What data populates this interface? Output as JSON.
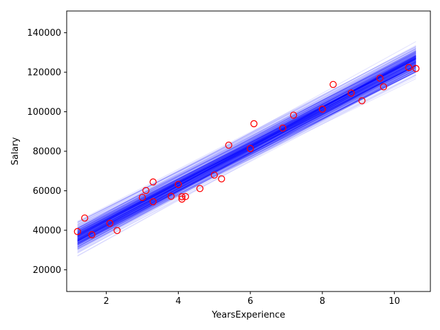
{
  "chart_data": {
    "type": "scatter",
    "title": "",
    "xlabel": "YearsExperience",
    "ylabel": "Salary",
    "xlim": [
      0.9,
      11.0
    ],
    "ylim": [
      9000,
      151000
    ],
    "x_ticks": [
      2,
      4,
      6,
      8,
      10
    ],
    "y_ticks": [
      20000,
      40000,
      60000,
      80000,
      100000,
      120000,
      140000
    ],
    "grid": false,
    "legend": "none",
    "colors": {
      "points": "#ff0000",
      "regression_lines": "#0000ff"
    },
    "points": {
      "x": [
        1.2,
        1.4,
        1.6,
        2.1,
        2.3,
        3.0,
        3.1,
        3.3,
        3.3,
        3.8,
        4.0,
        4.1,
        4.1,
        4.2,
        4.6,
        5.0,
        5.2,
        5.4,
        6.0,
        6.1,
        6.9,
        7.2,
        8.0,
        8.3,
        8.8,
        9.1,
        9.6,
        9.7,
        10.4,
        10.6
      ],
      "y": [
        39344,
        46206,
        37732,
        43526,
        39892,
        56643,
        60151,
        54446,
        64446,
        57190,
        63219,
        55795,
        56958,
        57082,
        61112,
        67939,
        66030,
        83089,
        81364,
        93941,
        91739,
        98274,
        101303,
        113813,
        109432,
        105583,
        116970,
        112636,
        122392,
        121873
      ]
    },
    "regression_band": {
      "line_count": 300,
      "x_range": [
        1.2,
        10.6
      ],
      "intercept_range": [
        21000,
        29000
      ],
      "slope_range": [
        8500,
        10500
      ],
      "noise": 4000
    }
  }
}
